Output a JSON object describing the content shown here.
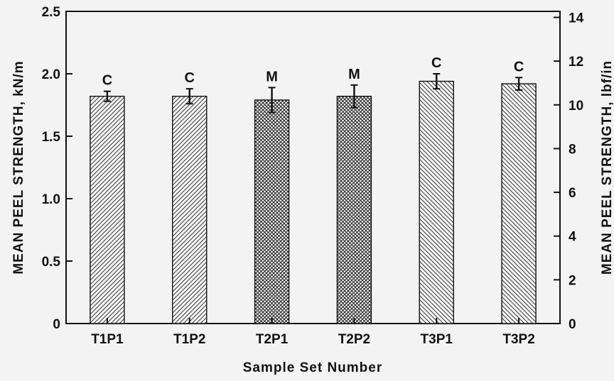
{
  "chart_data": {
    "type": "bar",
    "categories": [
      "T1P1",
      "T1P2",
      "T2P1",
      "T2P2",
      "T3P1",
      "T3P2"
    ],
    "values": [
      1.82,
      1.82,
      1.79,
      1.82,
      1.94,
      1.92
    ],
    "error_bars": [
      0.04,
      0.06,
      0.1,
      0.09,
      0.06,
      0.05
    ],
    "bar_labels": [
      "C",
      "C",
      "M",
      "M",
      "C",
      "C"
    ],
    "bar_patterns": [
      "diagonal-forward",
      "diagonal-forward",
      "crosshatch",
      "crosshatch",
      "diagonal-back",
      "diagonal-back"
    ],
    "xlabel": "Sample Set Number",
    "ylabel": "MEAN PEEL STRENGTH, kN/m",
    "ylabel_right": "MEAN PEEL STRENGTH, lbf/in",
    "ylim": [
      0,
      2.5
    ],
    "yticks": [
      "0",
      "0.5",
      "1.0",
      "1.5",
      "2.0",
      "2.5"
    ],
    "ylim_right": [
      0,
      14.276
    ],
    "yticks_right": [
      "0",
      "2",
      "4",
      "6",
      "8",
      "10",
      "12",
      "14"
    ],
    "grid": false,
    "colors": {
      "ink": "#111111",
      "bar_fill": "#f4f4f4",
      "background": "#f3f3f3"
    }
  }
}
